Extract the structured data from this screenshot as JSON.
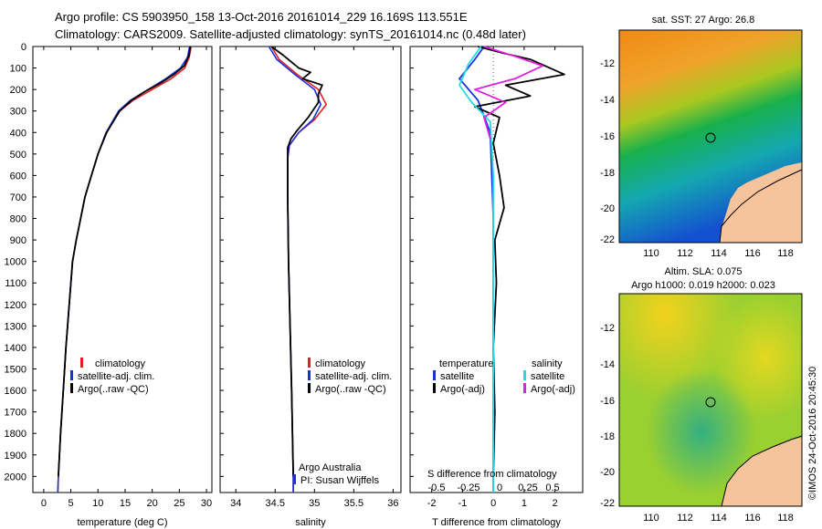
{
  "header": {
    "title_line1": "Argo profile: CS 5903950_158 13-Oct-2016 20161014_229 16.169S 113.551E",
    "title_line2": "Climatology: CARS2009. Satellite-adjusted climatology: synTS_20161014.nc (0.48d later)"
  },
  "colors": {
    "climatology": "#e02020",
    "satellite": "#1a2fe0",
    "argo": "#000000",
    "satellite_salinity": "#22dde0",
    "argo_salinity": "#e020e0",
    "land": "#f6c49c"
  },
  "chart_data": [
    {
      "type": "line",
      "ylabel": "",
      "xlabel": "temperature (deg C)",
      "xlim": [
        -2,
        31
      ],
      "ylim": [
        2075,
        0
      ],
      "xticks": [
        0,
        5,
        10,
        15,
        20,
        25,
        30
      ],
      "yticks": [
        0,
        100,
        200,
        300,
        400,
        500,
        600,
        700,
        800,
        900,
        1000,
        1100,
        1200,
        1300,
        1400,
        1500,
        1600,
        1700,
        1800,
        1900,
        2000
      ],
      "legend": [
        "climatology",
        "satellite-adj. clim.",
        "Argo(..raw -QC)"
      ],
      "series": [
        {
          "name": "climatology",
          "points": [
            [
              27.2,
              0
            ],
            [
              26.8,
              50
            ],
            [
              26.0,
              100
            ],
            [
              23.5,
              150
            ],
            [
              20.0,
              200
            ],
            [
              16.5,
              250
            ],
            [
              14.0,
              300
            ],
            [
              11.5,
              400
            ],
            [
              10.0,
              500
            ],
            [
              8.8,
              600
            ],
            [
              7.6,
              700
            ],
            [
              6.8,
              800
            ],
            [
              6.0,
              900
            ],
            [
              5.3,
              1000
            ],
            [
              4.7,
              1200
            ],
            [
              4.1,
              1400
            ],
            [
              3.6,
              1600
            ],
            [
              3.1,
              1800
            ],
            [
              2.7,
              2000
            ],
            [
              2.6,
              2075
            ]
          ]
        },
        {
          "name": "satellite-adj. clim.",
          "points": [
            [
              26.9,
              0
            ],
            [
              26.5,
              50
            ],
            [
              25.2,
              100
            ],
            [
              22.5,
              150
            ],
            [
              19.3,
              200
            ],
            [
              16.0,
              250
            ],
            [
              13.8,
              300
            ],
            [
              11.5,
              400
            ],
            [
              10.0,
              500
            ],
            [
              8.8,
              600
            ],
            [
              7.6,
              700
            ],
            [
              6.8,
              800
            ],
            [
              6.0,
              900
            ],
            [
              5.3,
              1000
            ],
            [
              4.7,
              1200
            ],
            [
              4.1,
              1400
            ],
            [
              3.6,
              1600
            ],
            [
              3.1,
              1800
            ],
            [
              2.7,
              2000
            ],
            [
              2.6,
              2075
            ]
          ]
        },
        {
          "name": "Argo(..raw -QC)",
          "points": [
            [
              27.0,
              0
            ],
            [
              26.8,
              40
            ],
            [
              25.9,
              90
            ],
            [
              24.0,
              130
            ],
            [
              21.5,
              170
            ],
            [
              18.6,
              210
            ],
            [
              16.2,
              250
            ],
            [
              14.0,
              300
            ],
            [
              11.6,
              400
            ],
            [
              10.0,
              500
            ],
            [
              8.8,
              600
            ],
            [
              7.6,
              700
            ],
            [
              6.8,
              800
            ],
            [
              6.0,
              900
            ],
            [
              5.3,
              1000
            ],
            [
              4.7,
              1200
            ],
            [
              4.1,
              1400
            ],
            [
              3.6,
              1600
            ],
            [
              3.1,
              1800
            ],
            [
              2.7,
              2000
            ]
          ]
        }
      ]
    },
    {
      "type": "line",
      "xlabel": "salinity",
      "xlim": [
        33.8,
        36.1
      ],
      "ylim": [
        2075,
        0
      ],
      "xticks": [
        34,
        34.5,
        35,
        35.5,
        36
      ],
      "legend": [
        "climatology",
        "satellite-adj. clim.",
        "Argo(..raw -QC)"
      ],
      "annotation": [
        "Argo Australia",
        "PI: Susan Wijffels"
      ],
      "series": [
        {
          "name": "climatology",
          "points": [
            [
              34.45,
              0
            ],
            [
              34.55,
              60
            ],
            [
              34.78,
              130
            ],
            [
              35.05,
              200
            ],
            [
              35.15,
              270
            ],
            [
              35.0,
              340
            ],
            [
              34.8,
              400
            ],
            [
              34.68,
              460
            ],
            [
              34.66,
              520
            ],
            [
              34.66,
              700
            ],
            [
              34.67,
              1000
            ],
            [
              34.69,
              1300
            ],
            [
              34.71,
              1600
            ],
            [
              34.73,
              2000
            ],
            [
              34.73,
              2075
            ]
          ]
        },
        {
          "name": "satellite-adj. clim.",
          "points": [
            [
              34.42,
              0
            ],
            [
              34.52,
              60
            ],
            [
              34.75,
              130
            ],
            [
              35.0,
              200
            ],
            [
              35.08,
              270
            ],
            [
              34.98,
              340
            ],
            [
              34.8,
              400
            ],
            [
              34.68,
              460
            ],
            [
              34.66,
              520
            ],
            [
              34.66,
              700
            ],
            [
              34.67,
              1000
            ],
            [
              34.69,
              1300
            ],
            [
              34.71,
              1600
            ],
            [
              34.73,
              2000
            ],
            [
              34.73,
              2075
            ]
          ]
        },
        {
          "name": "Argo(..raw -QC)",
          "points": [
            [
              34.45,
              0
            ],
            [
              34.6,
              40
            ],
            [
              34.8,
              100
            ],
            [
              34.95,
              120
            ],
            [
              34.85,
              150
            ],
            [
              35.1,
              180
            ],
            [
              35.05,
              220
            ],
            [
              35.05,
              260
            ],
            [
              34.92,
              330
            ],
            [
              34.78,
              390
            ],
            [
              34.7,
              430
            ],
            [
              34.66,
              470
            ],
            [
              34.66,
              700
            ],
            [
              34.67,
              1000
            ],
            [
              34.69,
              1300
            ],
            [
              34.71,
              1600
            ],
            [
              34.73,
              2000
            ]
          ]
        }
      ]
    },
    {
      "type": "line",
      "xlabel": "T difference from climatology",
      "xlabel_top": "S difference from climatology",
      "xlim": [
        -2.7,
        2.9
      ],
      "ylim": [
        2075,
        0
      ],
      "xticks": [
        -2,
        -1,
        0,
        1,
        2
      ],
      "xticks_salinity": [
        "-0.5",
        "-0.25",
        "0",
        "0.25",
        "0.5"
      ],
      "legend_temperature": [
        "temperature",
        "satellite",
        "Argo(-adj)"
      ],
      "legend_salinity": [
        "salinity",
        "satellite",
        "Argo(-adj)"
      ],
      "series": [
        {
          "name": "satellite",
          "points": [
            [
              -0.3,
              0
            ],
            [
              -0.6,
              60
            ],
            [
              -1.1,
              150
            ],
            [
              -0.5,
              250
            ],
            [
              -0.1,
              400
            ],
            [
              0.0,
              800
            ],
            [
              0.0,
              2075
            ]
          ]
        },
        {
          "name": "Argo(-adj)",
          "points": [
            [
              -0.5,
              0
            ],
            [
              0.3,
              30
            ],
            [
              1.2,
              60
            ],
            [
              2.3,
              130
            ],
            [
              0.4,
              180
            ],
            [
              1.2,
              230
            ],
            [
              -0.6,
              280
            ],
            [
              0.2,
              330
            ],
            [
              0.0,
              450
            ],
            [
              0.2,
              600
            ],
            [
              0.35,
              750
            ],
            [
              0.05,
              900
            ],
            [
              0.1,
              1100
            ],
            [
              0.0,
              1400
            ],
            [
              0.05,
              1700
            ],
            [
              0.0,
              2000
            ]
          ]
        },
        {
          "name": "satellite",
          "points": [
            [
              -0.4,
              0
            ],
            [
              -0.8,
              80
            ],
            [
              -1.1,
              180
            ],
            [
              -0.7,
              260
            ],
            [
              -0.1,
              350
            ],
            [
              0.0,
              600
            ],
            [
              0.0,
              2075
            ]
          ]
        },
        {
          "name": "Argo(-adj)",
          "points": [
            [
              -0.3,
              0
            ],
            [
              0.8,
              50
            ],
            [
              1.6,
              90
            ],
            [
              0.7,
              150
            ],
            [
              -0.6,
              200
            ],
            [
              0.4,
              260
            ],
            [
              -0.3,
              330
            ],
            [
              -0.1,
              430
            ]
          ]
        }
      ]
    }
  ],
  "maps": {
    "sst": {
      "title": "sat. SST: 27 Argo: 26.8",
      "xticks": [
        "110",
        "112",
        "114",
        "116",
        "118"
      ],
      "yticks": [
        "-12",
        "-14",
        "-16",
        "-18",
        "-20",
        "-22"
      ],
      "xlim": [
        108.3,
        119
      ],
      "ylim": [
        -22.2,
        -10.8
      ]
    },
    "sla": {
      "title_line1": "Altim. SLA: 0.075",
      "title_line2": "Argo h1000: 0.019 h2000: 0.023",
      "xticks": [
        "110",
        "112",
        "114",
        "116",
        "118"
      ],
      "yticks": [
        "-12",
        "-14",
        "-16",
        "-18",
        "-20",
        "-22"
      ],
      "xlim": [
        108.3,
        119
      ],
      "ylim": [
        -22.2,
        -10.8
      ]
    },
    "marker": {
      "lon": 113.551,
      "lat": -16.169
    }
  },
  "credit": "©IMOS 24-Oct-2016 20:45:30"
}
